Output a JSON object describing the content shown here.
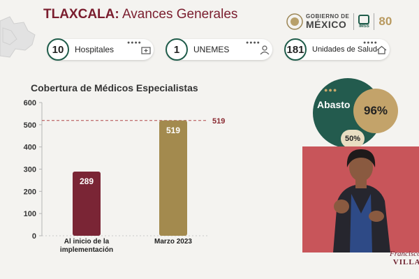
{
  "header": {
    "state": "TLAXCALA:",
    "title": "Avances Generales"
  },
  "logos": {
    "gobierno_top": "GOBIERNO DE",
    "gobierno_bottom": "MÉXICO",
    "imss": "IMSS",
    "anniversary": "80"
  },
  "stats": [
    {
      "value": "10",
      "label": "Hospitales",
      "icon": "hospital-icon"
    },
    {
      "value": "1",
      "label": "UNEMES",
      "icon": "doctor-icon"
    },
    {
      "value": "181",
      "label": "Unidades de Salud",
      "icon": "house-icon"
    }
  ],
  "abasto": {
    "label": "Abasto",
    "value": "96%",
    "secondary": "50%"
  },
  "footer_brand": {
    "line1": "Francisco",
    "line2": "VILLA"
  },
  "colors": {
    "maroon": "#7a1d2e",
    "gold": "#a38a4e",
    "green": "#235b4e",
    "target_line": "#b04848"
  },
  "chart_data": {
    "type": "bar",
    "title": "Cobertura de Médicos Especialistas",
    "categories": [
      "Al inicio de la implementación",
      "Marzo 2023"
    ],
    "category_lines": [
      [
        "Al inicio de la",
        "implementación"
      ],
      [
        "Marzo 2023"
      ]
    ],
    "values": [
      289,
      519
    ],
    "value_labels": [
      "289",
      "519"
    ],
    "bar_colors": [
      "#7a2535",
      "#a38a4e"
    ],
    "ylim": [
      0,
      600
    ],
    "yticks": [
      0,
      100,
      200,
      300,
      400,
      500,
      600
    ],
    "reference_line": {
      "value": 519,
      "label": "519"
    },
    "grid": false
  }
}
